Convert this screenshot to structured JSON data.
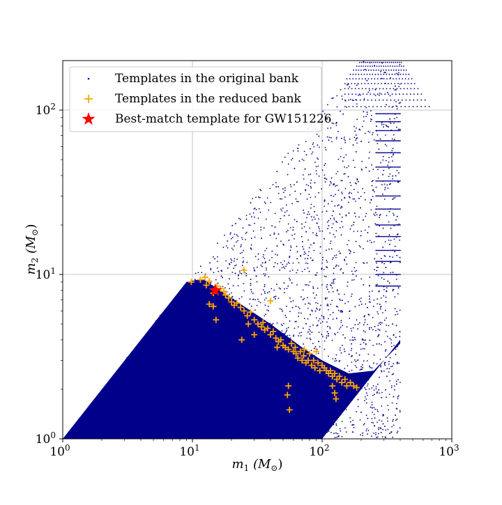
{
  "chart_data": {
    "type": "scatter",
    "xscale": "log",
    "yscale": "log",
    "xlim": [
      1,
      1000
    ],
    "ylim": [
      1,
      200
    ],
    "grid": true,
    "legend_position": "upper-left",
    "xticks": [
      {
        "value": 1,
        "base": "10",
        "exp": "0"
      },
      {
        "value": 10,
        "base": "10",
        "exp": "1"
      },
      {
        "value": 100,
        "base": "10",
        "exp": "2"
      },
      {
        "value": 1000,
        "base": "10",
        "exp": "3"
      }
    ],
    "yticks": [
      {
        "value": 1,
        "base": "10",
        "exp": "0"
      },
      {
        "value": 10,
        "base": "10",
        "exp": "1"
      },
      {
        "value": 100,
        "base": "10",
        "exp": "2"
      }
    ],
    "xlabel": {
      "var": "m",
      "sub": "1",
      "unit": "(M",
      "unit_sub": "⊙",
      "close": ")"
    },
    "ylabel": {
      "var": "m",
      "sub": "2",
      "unit": "(M",
      "unit_sub": "⊙",
      "close": ")"
    },
    "colors": {
      "original": "#00008b",
      "reduced": "#ffa500",
      "best": "#ff0000"
    },
    "series": [
      {
        "name": "Templates in the original bank",
        "marker": "dot",
        "region": {
          "description": "dense region bounded by m2 <= m1, m1 <= 400, points roughly uniform in log space",
          "lower_left": [
            1,
            1
          ],
          "upper_edge_points": [
            [
              1,
              1
            ],
            [
              10,
              10
            ],
            [
              100,
              100
            ],
            [
              200,
              200
            ]
          ],
          "right_edge": [
            [
              400,
              4
            ],
            [
              400,
              80
            ]
          ],
          "bottom_edge_points": [
            [
              100,
              1
            ],
            [
              400,
              4
            ]
          ]
        }
      },
      {
        "name": "Templates in the reduced bank",
        "marker": "plus",
        "points": [
          [
            9.8,
            9.0
          ],
          [
            11.5,
            9.3
          ],
          [
            12.5,
            9.6
          ],
          [
            12.8,
            8.6
          ],
          [
            13.5,
            9.1
          ],
          [
            14.5,
            7.7
          ],
          [
            15.5,
            8.5
          ],
          [
            16.5,
            8.2
          ],
          [
            17.5,
            7.9
          ],
          [
            13.5,
            6.6
          ],
          [
            14.5,
            6.4
          ],
          [
            15.2,
            5.3
          ],
          [
            18.0,
            7.5
          ],
          [
            19.0,
            7.2
          ],
          [
            20.0,
            6.8
          ],
          [
            21.0,
            6.5
          ],
          [
            22.0,
            6.7
          ],
          [
            23.5,
            6.3
          ],
          [
            25.0,
            10.6
          ],
          [
            25.0,
            6.0
          ],
          [
            26.5,
            5.6
          ],
          [
            28.0,
            5.9
          ],
          [
            30.0,
            5.3
          ],
          [
            32.0,
            5.0
          ],
          [
            34.0,
            4.8
          ],
          [
            35.0,
            5.1
          ],
          [
            36.0,
            4.6
          ],
          [
            38.0,
            4.7
          ],
          [
            40.0,
            6.9
          ],
          [
            40.0,
            4.3
          ],
          [
            42.0,
            4.5
          ],
          [
            44.0,
            4.1
          ],
          [
            46.0,
            3.9
          ],
          [
            48.0,
            4.0
          ],
          [
            50.0,
            3.7
          ],
          [
            24.0,
            4.0
          ],
          [
            30.0,
            4.3
          ],
          [
            27.0,
            5.0
          ],
          [
            52.0,
            3.6
          ],
          [
            55.0,
            3.5
          ],
          [
            58.0,
            3.8
          ],
          [
            60.0,
            3.4
          ],
          [
            63.0,
            3.3
          ],
          [
            65.0,
            3.1
          ],
          [
            68.0,
            3.4
          ],
          [
            70.0,
            3.0
          ],
          [
            72.0,
            3.2
          ],
          [
            75.0,
            2.9
          ],
          [
            78.0,
            3.0
          ],
          [
            80.0,
            3.3
          ],
          [
            83.0,
            2.8
          ],
          [
            86.0,
            3.0
          ],
          [
            88.0,
            2.7
          ],
          [
            90.0,
            3.4
          ],
          [
            93.0,
            2.9
          ],
          [
            96.0,
            2.6
          ],
          [
            100.0,
            2.8
          ],
          [
            104.0,
            2.7
          ],
          [
            108.0,
            2.6
          ],
          [
            112.0,
            2.5
          ],
          [
            116.0,
            2.6
          ],
          [
            120.0,
            2.4
          ],
          [
            125.0,
            2.5
          ],
          [
            130.0,
            2.3
          ],
          [
            136.0,
            2.4
          ],
          [
            142.0,
            2.2
          ],
          [
            150.0,
            2.3
          ],
          [
            155.0,
            2.1
          ],
          [
            165.0,
            2.2
          ],
          [
            175.0,
            2.1
          ],
          [
            185.0,
            2.05
          ],
          [
            120.0,
            2.1
          ],
          [
            125.0,
            1.9
          ],
          [
            128.0,
            1.75
          ],
          [
            55.0,
            2.1
          ],
          [
            54.0,
            1.85
          ],
          [
            56.0,
            1.5
          ],
          [
            45.0,
            3.6
          ],
          [
            62.0,
            3.6
          ],
          [
            73.0,
            3.5
          ]
        ]
      },
      {
        "name": "Best-match template for GW151226",
        "marker": "star",
        "points": [
          [
            15,
            8
          ]
        ]
      }
    ]
  }
}
